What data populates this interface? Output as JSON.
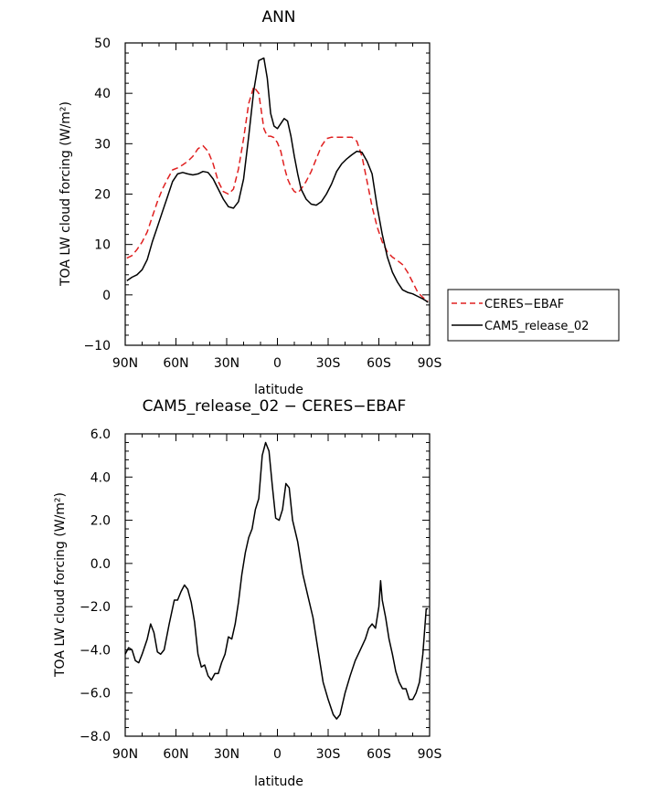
{
  "chart_data": [
    {
      "type": "line",
      "title": "ANN",
      "xlabel": "latitude",
      "ylabel": "TOA LW cloud forcing (W/m²)",
      "xlim": [
        -90,
        90
      ],
      "ylim": [
        -10,
        50
      ],
      "x_tick_values": [
        -90,
        -60,
        -30,
        0,
        30,
        60,
        90
      ],
      "x_tick_labels": [
        "90N",
        "60N",
        "30N",
        "0",
        "30S",
        "60S",
        "90S"
      ],
      "y_tick_values": [
        -10,
        0,
        10,
        20,
        30,
        40,
        50
      ],
      "y_tick_labels": [
        "−10",
        "0",
        "10",
        "20",
        "30",
        "40",
        "50"
      ],
      "legend_position": "outside-right",
      "series": [
        {
          "name": "CERES−EBAF",
          "color": "#e02020",
          "style": "dashed",
          "x": [
            -89,
            -86,
            -83,
            -80,
            -77,
            -74,
            -71,
            -68,
            -65,
            -62,
            -59,
            -56,
            -53,
            -50,
            -47,
            -44,
            -41,
            -38,
            -35,
            -32,
            -29,
            -26,
            -23,
            -20,
            -17,
            -14,
            -11,
            -8,
            -6,
            -4,
            -2,
            0,
            2,
            4,
            6,
            8,
            10,
            12,
            14,
            17,
            20,
            23,
            26,
            29,
            32,
            35,
            38,
            41,
            44,
            47,
            50,
            53,
            56,
            59,
            62,
            65,
            68,
            71,
            74,
            77,
            80,
            83,
            86,
            88,
            89
          ],
          "y": [
            7.3,
            7.8,
            9.0,
            10.5,
            12.5,
            15.5,
            18.5,
            21.0,
            23.0,
            24.8,
            25.2,
            25.8,
            26.5,
            27.5,
            29.0,
            29.6,
            28.5,
            26.0,
            22.5,
            20.5,
            20.0,
            21.0,
            25.0,
            31.0,
            38.0,
            41.3,
            40.0,
            33.0,
            31.5,
            31.5,
            31.2,
            30.2,
            28.5,
            25.5,
            23.0,
            21.5,
            20.5,
            20.2,
            21.0,
            22.5,
            24.5,
            27.0,
            29.5,
            31.0,
            31.3,
            31.3,
            31.3,
            31.3,
            31.3,
            30.5,
            27.5,
            22.5,
            17.5,
            13.5,
            10.5,
            8.5,
            7.5,
            6.8,
            6.0,
            4.5,
            2.5,
            0.5,
            -0.5,
            -1.0,
            -1.2
          ]
        },
        {
          "name": "CAM5_release_02",
          "color": "#000000",
          "style": "solid",
          "x": [
            -89,
            -86,
            -83,
            -80,
            -77,
            -74,
            -71,
            -68,
            -65,
            -62,
            -59,
            -56,
            -53,
            -50,
            -47,
            -44,
            -41,
            -38,
            -35,
            -32,
            -29,
            -26,
            -23,
            -20,
            -17,
            -14,
            -11,
            -8,
            -6,
            -4,
            -2,
            0,
            2,
            4,
            6,
            8,
            10,
            12,
            14,
            17,
            20,
            23,
            26,
            29,
            32,
            35,
            38,
            41,
            44,
            47,
            50,
            53,
            56,
            59,
            62,
            65,
            68,
            71,
            74,
            77,
            80,
            83,
            86,
            88,
            89
          ],
          "y": [
            2.8,
            3.5,
            4.0,
            5.0,
            7.0,
            10.5,
            13.5,
            16.5,
            19.5,
            22.5,
            24.0,
            24.3,
            24.0,
            23.8,
            24.0,
            24.5,
            24.3,
            23.0,
            21.0,
            19.0,
            17.5,
            17.2,
            18.5,
            23.0,
            31.5,
            40.5,
            46.5,
            47.0,
            43.0,
            36.0,
            33.5,
            33.0,
            34.0,
            35.0,
            34.5,
            31.5,
            27.5,
            24.0,
            21.0,
            19.0,
            18.0,
            17.8,
            18.5,
            20.0,
            22.0,
            24.5,
            26.0,
            27.0,
            27.8,
            28.5,
            28.3,
            26.5,
            24.0,
            17.5,
            12.0,
            7.5,
            4.5,
            2.5,
            1.0,
            0.5,
            0.2,
            -0.3,
            -0.8,
            -1.2,
            -1.5
          ]
        }
      ]
    },
    {
      "type": "line",
      "title": "CAM5_release_02 − CERES−EBAF",
      "xlabel": "latitude",
      "ylabel": "TOA LW cloud forcing (W/m²)",
      "xlim": [
        -90,
        90
      ],
      "ylim": [
        -8,
        6
      ],
      "x_tick_values": [
        -90,
        -60,
        -30,
        0,
        30,
        60,
        90
      ],
      "x_tick_labels": [
        "90N",
        "60N",
        "30N",
        "0",
        "30S",
        "60S",
        "90S"
      ],
      "y_tick_values": [
        -8,
        -6,
        -4,
        -2,
        0,
        2,
        4,
        6
      ],
      "y_tick_labels": [
        "−8.0",
        "−6.0",
        "−4.0",
        "−2.0",
        "0.0",
        "2.0",
        "4.0",
        "6.0"
      ],
      "series": [
        {
          "color": "#000000",
          "style": "solid",
          "x": [
            -90,
            -88,
            -86,
            -84,
            -82,
            -80,
            -77,
            -75,
            -73,
            -71,
            -69,
            -67,
            -64,
            -61,
            -59,
            -57,
            -55,
            -53,
            -51,
            -49,
            -47,
            -45,
            -43,
            -41,
            -39,
            -37,
            -35,
            -33,
            -31,
            -29,
            -27,
            -25,
            -23,
            -21,
            -19,
            -17,
            -15,
            -13,
            -11,
            -9,
            -7,
            -5,
            -3,
            -1,
            1,
            3,
            5,
            7,
            9,
            12,
            15,
            18,
            21,
            24,
            27,
            30,
            33,
            35,
            37,
            40,
            43,
            46,
            49,
            52,
            54,
            56,
            58,
            60,
            61,
            62,
            64,
            66,
            68,
            70,
            72,
            74,
            76,
            78,
            80,
            82,
            84,
            86,
            88,
            89
          ],
          "y": [
            -4.2,
            -3.9,
            -4.0,
            -4.5,
            -4.6,
            -4.2,
            -3.5,
            -2.8,
            -3.2,
            -4.1,
            -4.2,
            -4.0,
            -2.8,
            -1.7,
            -1.7,
            -1.3,
            -1.0,
            -1.2,
            -1.8,
            -2.7,
            -4.2,
            -4.8,
            -4.7,
            -5.2,
            -5.4,
            -5.1,
            -5.1,
            -4.6,
            -4.2,
            -3.4,
            -3.5,
            -2.8,
            -1.8,
            -0.5,
            0.5,
            1.2,
            1.6,
            2.5,
            3.0,
            5.0,
            5.6,
            5.2,
            3.6,
            2.1,
            2.0,
            2.5,
            3.7,
            3.5,
            2.0,
            1.0,
            -0.5,
            -1.5,
            -2.5,
            -4.0,
            -5.5,
            -6.3,
            -7.0,
            -7.2,
            -7.0,
            -6.0,
            -5.2,
            -4.5,
            -4.0,
            -3.5,
            -3.0,
            -2.8,
            -3.0,
            -2.0,
            -0.8,
            -1.7,
            -2.5,
            -3.5,
            -4.2,
            -5.0,
            -5.5,
            -5.8,
            -5.8,
            -6.3,
            -6.3,
            -6.0,
            -5.5,
            -4.2,
            -2.1,
            -2.1
          ]
        }
      ]
    }
  ]
}
